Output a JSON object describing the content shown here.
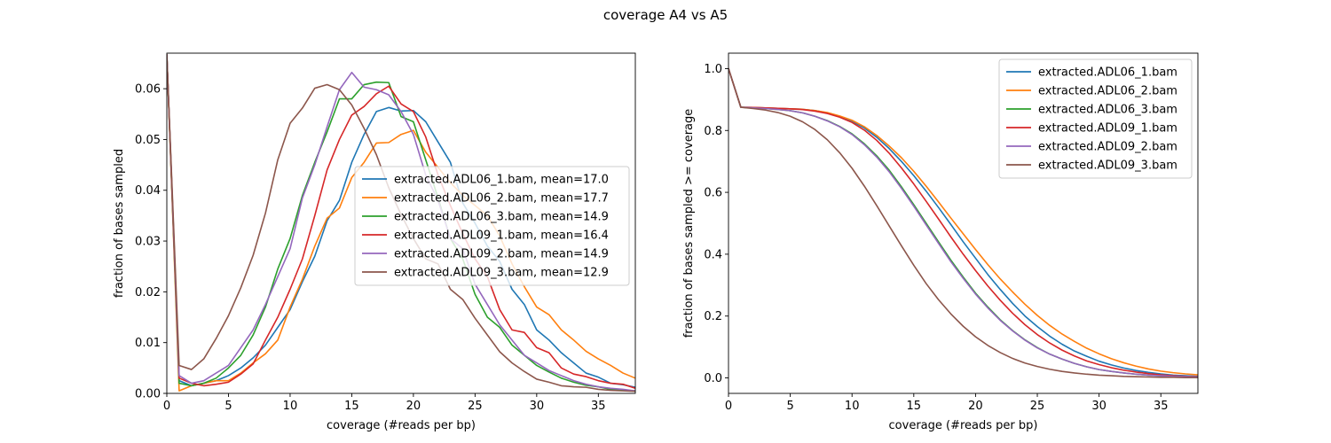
{
  "figure": {
    "title": "coverage A4 vs A5"
  },
  "chart_data": [
    {
      "type": "line",
      "xlabel": "coverage (#reads per bp)",
      "ylabel": "fraction of bases sampled",
      "xlim": [
        0,
        38
      ],
      "ylim": [
        0,
        0.067
      ],
      "xticks": [
        0,
        5,
        10,
        15,
        20,
        25,
        30,
        35
      ],
      "yticks": [
        0.0,
        0.01,
        0.02,
        0.03,
        0.04,
        0.05,
        0.06
      ],
      "ytick_labels": [
        "0.00",
        "0.01",
        "0.02",
        "0.03",
        "0.04",
        "0.05",
        "0.06"
      ],
      "legend_position": "center-right",
      "x": [
        0,
        1,
        2,
        3,
        4,
        5,
        6,
        7,
        8,
        9,
        10,
        11,
        12,
        13,
        14,
        15,
        16,
        17,
        18,
        19,
        20,
        21,
        22,
        23,
        24,
        25,
        26,
        27,
        28,
        29,
        30,
        31,
        32,
        33,
        34,
        35,
        36,
        37,
        38
      ],
      "series": [
        {
          "name": "extracted.ADL06_1.bam, mean=17.0",
          "color": "#1f77b4",
          "values": [
            0.0667,
            0.0025,
            0.0015,
            0.002,
            0.0025,
            0.0035,
            0.005,
            0.007,
            0.0095,
            0.013,
            0.0165,
            0.022,
            0.027,
            0.034,
            0.038,
            0.0455,
            0.051,
            0.0555,
            0.0563,
            0.0556,
            0.0557,
            0.0535,
            0.0495,
            0.0455,
            0.0375,
            0.0335,
            0.029,
            0.026,
            0.0205,
            0.0175,
            0.0125,
            0.0105,
            0.008,
            0.006,
            0.004,
            0.0032,
            0.002,
            0.0017,
            0.0012
          ]
        },
        {
          "name": "extracted.ADL06_2.bam, mean=17.7",
          "color": "#ff7f0e",
          "values": [
            0.0667,
            0.0005,
            0.0015,
            0.002,
            0.0025,
            0.0025,
            0.004,
            0.006,
            0.0078,
            0.0105,
            0.017,
            0.0225,
            0.029,
            0.0345,
            0.0365,
            0.0425,
            0.0455,
            0.0493,
            0.0494,
            0.051,
            0.0518,
            0.0475,
            0.0445,
            0.0415,
            0.039,
            0.037,
            0.035,
            0.031,
            0.0255,
            0.021,
            0.017,
            0.0155,
            0.0125,
            0.0105,
            0.0083,
            0.0068,
            0.0055,
            0.004,
            0.003
          ]
        },
        {
          "name": "extracted.ADL06_3.bam, mean=14.9",
          "color": "#2ca02c",
          "values": [
            0.0667,
            0.002,
            0.0015,
            0.002,
            0.003,
            0.005,
            0.0075,
            0.0115,
            0.017,
            0.0245,
            0.0305,
            0.039,
            0.0455,
            0.0515,
            0.058,
            0.058,
            0.0608,
            0.0613,
            0.0612,
            0.0545,
            0.0535,
            0.046,
            0.0385,
            0.0305,
            0.0265,
            0.0195,
            0.015,
            0.013,
            0.0095,
            0.0075,
            0.0055,
            0.0042,
            0.003,
            0.0022,
            0.0016,
            0.0013,
            0.0008,
            0.0007,
            0.0005
          ]
        },
        {
          "name": "extracted.ADL09_1.bam, mean=16.4",
          "color": "#d62728",
          "values": [
            0.0667,
            0.003,
            0.002,
            0.0015,
            0.0018,
            0.0022,
            0.0038,
            0.0058,
            0.0105,
            0.015,
            0.0205,
            0.0265,
            0.035,
            0.044,
            0.05,
            0.0548,
            0.0565,
            0.059,
            0.0605,
            0.057,
            0.0555,
            0.0505,
            0.043,
            0.037,
            0.0315,
            0.0265,
            0.023,
            0.0165,
            0.0125,
            0.012,
            0.009,
            0.008,
            0.005,
            0.0038,
            0.0033,
            0.0025,
            0.002,
            0.0018,
            0.001
          ]
        },
        {
          "name": "extracted.ADL09_2.bam, mean=14.9",
          "color": "#9467bd",
          "values": [
            0.0667,
            0.0035,
            0.002,
            0.0025,
            0.004,
            0.0055,
            0.009,
            0.0125,
            0.0175,
            0.023,
            0.0285,
            0.0385,
            0.045,
            0.0525,
            0.0598,
            0.0632,
            0.0603,
            0.0598,
            0.0588,
            0.0555,
            0.051,
            0.043,
            0.038,
            0.0305,
            0.0285,
            0.0215,
            0.0175,
            0.0135,
            0.0105,
            0.0075,
            0.006,
            0.0045,
            0.0035,
            0.0025,
            0.0018,
            0.0013,
            0.001,
            0.0008,
            0.0005
          ]
        },
        {
          "name": "extracted.ADL09_3.bam, mean=12.9",
          "color": "#8c564b",
          "values": [
            0.0667,
            0.0055,
            0.0047,
            0.0068,
            0.0108,
            0.0153,
            0.0208,
            0.0272,
            0.0355,
            0.046,
            0.0532,
            0.0562,
            0.0601,
            0.0608,
            0.0598,
            0.0568,
            0.0522,
            0.047,
            0.0405,
            0.0352,
            0.0305,
            0.0265,
            0.0255,
            0.0205,
            0.0185,
            0.0148,
            0.0115,
            0.0082,
            0.006,
            0.0043,
            0.0028,
            0.0022,
            0.0015,
            0.0013,
            0.0012,
            0.0008,
            0.0006,
            0.0005,
            0.0004
          ]
        }
      ]
    },
    {
      "type": "line",
      "xlabel": "coverage (#reads per bp)",
      "ylabel": "fraction of bases sampled >= coverage",
      "xlim": [
        0,
        38
      ],
      "ylim": [
        -0.05,
        1.05
      ],
      "xticks": [
        0,
        5,
        10,
        15,
        20,
        25,
        30,
        35
      ],
      "yticks": [
        0.0,
        0.2,
        0.4,
        0.6,
        0.8,
        1.0
      ],
      "ytick_labels": [
        "0.0",
        "0.2",
        "0.4",
        "0.6",
        "0.8",
        "1.0"
      ],
      "legend_position": "top-right",
      "x": [
        0,
        1,
        2,
        3,
        4,
        5,
        6,
        7,
        8,
        9,
        10,
        11,
        12,
        13,
        14,
        15,
        16,
        17,
        18,
        19,
        20,
        21,
        22,
        23,
        24,
        25,
        26,
        27,
        28,
        29,
        30,
        31,
        32,
        33,
        34,
        35,
        36,
        37,
        38
      ],
      "series": [
        {
          "name": "extracted.ADL06_1.bam",
          "color": "#1f77b4",
          "values": [
            1.0,
            0.875,
            0.8745,
            0.873,
            0.8715,
            0.87,
            0.8685,
            0.8645,
            0.857,
            0.845,
            0.83,
            0.808,
            0.778,
            0.742,
            0.7,
            0.654,
            0.604,
            0.551,
            0.496,
            0.44,
            0.387,
            0.334,
            0.286,
            0.241,
            0.2,
            0.166,
            0.135,
            0.109,
            0.087,
            0.07,
            0.054,
            0.042,
            0.032,
            0.024,
            0.018,
            0.013,
            0.009,
            0.007,
            0.005
          ]
        },
        {
          "name": "extracted.ADL06_2.bam",
          "color": "#ff7f0e",
          "values": [
            1.0,
            0.875,
            0.8745,
            0.873,
            0.8715,
            0.87,
            0.8685,
            0.8645,
            0.858,
            0.847,
            0.833,
            0.812,
            0.784,
            0.75,
            0.712,
            0.668,
            0.62,
            0.569,
            0.517,
            0.466,
            0.415,
            0.366,
            0.32,
            0.278,
            0.238,
            0.202,
            0.17,
            0.142,
            0.118,
            0.096,
            0.078,
            0.062,
            0.049,
            0.038,
            0.029,
            0.022,
            0.017,
            0.013,
            0.01
          ]
        },
        {
          "name": "extracted.ADL06_3.bam",
          "color": "#2ca02c",
          "values": [
            1.0,
            0.875,
            0.873,
            0.871,
            0.868,
            0.864,
            0.857,
            0.846,
            0.832,
            0.813,
            0.789,
            0.757,
            0.718,
            0.672,
            0.618,
            0.56,
            0.5,
            0.44,
            0.381,
            0.326,
            0.274,
            0.229,
            0.188,
            0.153,
            0.123,
            0.098,
            0.077,
            0.061,
            0.047,
            0.036,
            0.027,
            0.021,
            0.016,
            0.012,
            0.009,
            0.007,
            0.005,
            0.004,
            0.003
          ]
        },
        {
          "name": "extracted.ADL09_1.bam",
          "color": "#d62728",
          "values": [
            1.0,
            0.875,
            0.8745,
            0.873,
            0.8715,
            0.87,
            0.8675,
            0.8625,
            0.855,
            0.843,
            0.826,
            0.801,
            0.768,
            0.727,
            0.679,
            0.627,
            0.571,
            0.514,
            0.456,
            0.4,
            0.347,
            0.297,
            0.251,
            0.209,
            0.172,
            0.14,
            0.113,
            0.09,
            0.071,
            0.055,
            0.043,
            0.033,
            0.025,
            0.019,
            0.014,
            0.01,
            0.007,
            0.005,
            0.004
          ]
        },
        {
          "name": "extracted.ADL09_2.bam",
          "color": "#9467bd",
          "values": [
            1.0,
            0.875,
            0.873,
            0.871,
            0.868,
            0.864,
            0.857,
            0.846,
            0.831,
            0.812,
            0.787,
            0.754,
            0.714,
            0.667,
            0.613,
            0.555,
            0.495,
            0.435,
            0.376,
            0.322,
            0.271,
            0.226,
            0.186,
            0.152,
            0.122,
            0.097,
            0.077,
            0.061,
            0.047,
            0.036,
            0.027,
            0.021,
            0.016,
            0.012,
            0.009,
            0.007,
            0.005,
            0.004,
            0.003
          ]
        },
        {
          "name": "extracted.ADL09_3.bam",
          "color": "#8c564b",
          "values": [
            1.0,
            0.875,
            0.871,
            0.866,
            0.858,
            0.846,
            0.828,
            0.803,
            0.77,
            0.728,
            0.678,
            0.62,
            0.557,
            0.492,
            0.427,
            0.364,
            0.305,
            0.253,
            0.207,
            0.167,
            0.133,
            0.105,
            0.082,
            0.063,
            0.048,
            0.037,
            0.028,
            0.021,
            0.016,
            0.012,
            0.009,
            0.007,
            0.005,
            0.004,
            0.003,
            0.002,
            0.002,
            0.001,
            0.001
          ]
        }
      ]
    }
  ]
}
